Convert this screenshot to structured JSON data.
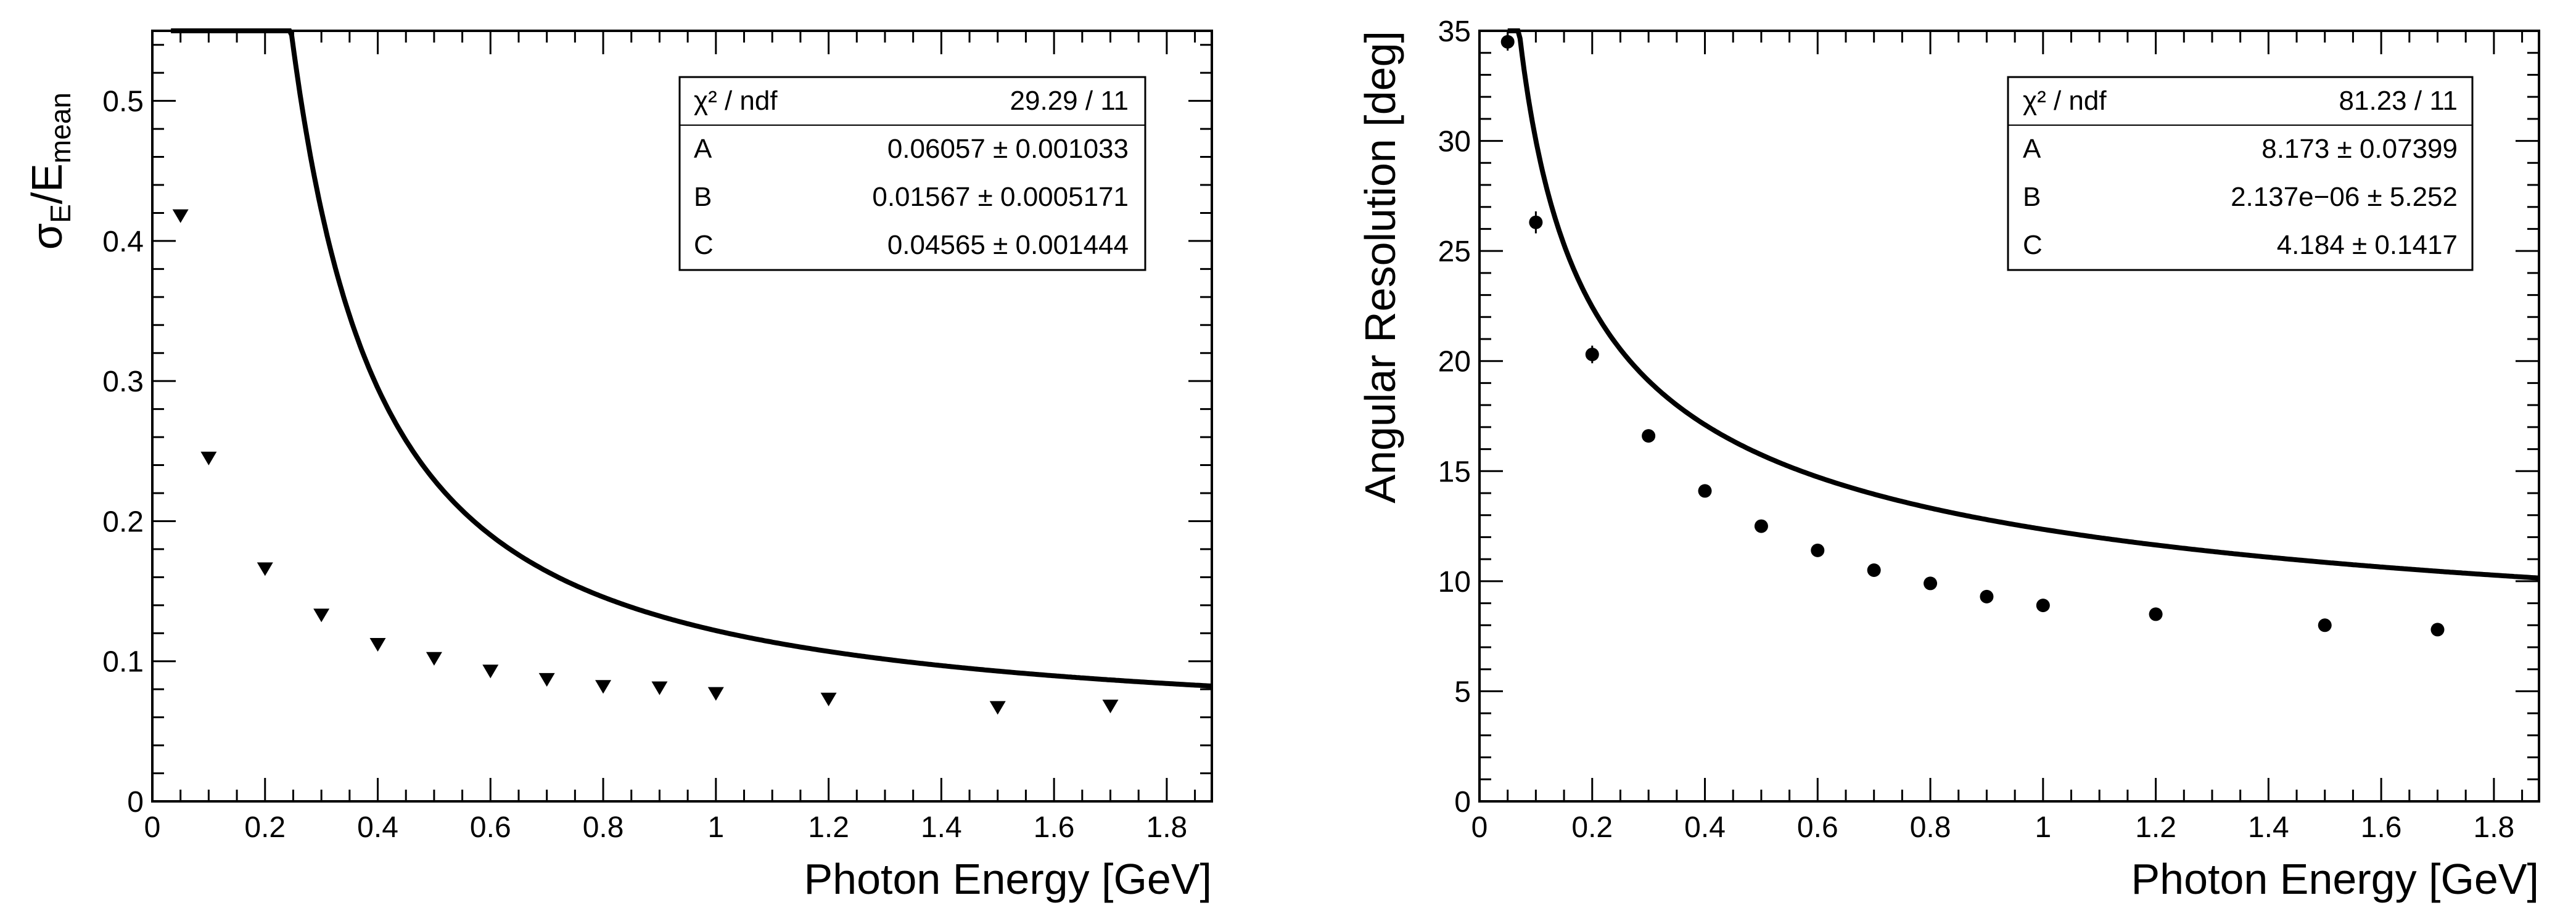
{
  "chart_data": [
    {
      "type": "scatter",
      "marker": "triangle-down",
      "xlabel": "Photon Energy [GeV]",
      "ylabel_main": "σ",
      "ylabel_sub1": "E",
      "ylabel_mid": "/E",
      "ylabel_sub2": "mean",
      "xlim": [
        0,
        1.88
      ],
      "ylim": [
        0,
        0.55
      ],
      "xticks": [
        0,
        0.2,
        0.4,
        0.6,
        0.8,
        1,
        1.2,
        1.4,
        1.6,
        1.8
      ],
      "xtick_labels": [
        "0",
        "0.2",
        "0.4",
        "0.6",
        "0.8",
        "1",
        "1.2",
        "1.4",
        "1.6",
        "1.8"
      ],
      "yticks": [
        0,
        0.1,
        0.2,
        0.3,
        0.4,
        0.5
      ],
      "ytick_labels": [
        "0",
        "0.1",
        "0.2",
        "0.3",
        "0.4",
        "0.5"
      ],
      "x": [
        0.05,
        0.1,
        0.2,
        0.3,
        0.4,
        0.5,
        0.6,
        0.7,
        0.8,
        0.9,
        1.0,
        1.2,
        1.5,
        1.7
      ],
      "y": [
        0.418,
        0.245,
        0.166,
        0.133,
        0.112,
        0.102,
        0.093,
        0.087,
        0.082,
        0.081,
        0.077,
        0.073,
        0.067,
        0.068
      ],
      "fit": {
        "model": "A/E + B/E^2 + C",
        "A": 0.06057,
        "B": 0.01567,
        "C": 0.04565,
        "xmin": 0.033,
        "xmax": 1.88
      },
      "stats": [
        {
          "label": "χ² / ndf",
          "value": "29.29 / 11"
        },
        {
          "label": "A",
          "value": "0.06057 ± 0.001033"
        },
        {
          "label": "B",
          "value": "0.01567 ± 0.0005171"
        },
        {
          "label": "C",
          "value": "0.04565 ± 0.001444"
        }
      ]
    },
    {
      "type": "scatter",
      "marker": "circle",
      "xlabel": "Photon Energy [GeV]",
      "ylabel": "Angular Resolution [deg]",
      "xlim": [
        0,
        1.88
      ],
      "ylim": [
        0,
        35
      ],
      "xticks": [
        0,
        0.2,
        0.4,
        0.6,
        0.8,
        1,
        1.2,
        1.4,
        1.6,
        1.8
      ],
      "xtick_labels": [
        "0",
        "0.2",
        "0.4",
        "0.6",
        "0.8",
        "1",
        "1.2",
        "1.4",
        "1.6",
        "1.8"
      ],
      "yticks": [
        0,
        5,
        10,
        15,
        20,
        25,
        30,
        35
      ],
      "ytick_labels": [
        "0",
        "5",
        "10",
        "15",
        "20",
        "25",
        "30",
        "35"
      ],
      "x": [
        0.05,
        0.1,
        0.2,
        0.3,
        0.4,
        0.5,
        0.6,
        0.7,
        0.8,
        0.9,
        1.0,
        1.2,
        1.5,
        1.7
      ],
      "y": [
        34.5,
        26.3,
        20.3,
        16.6,
        14.1,
        12.5,
        11.4,
        10.5,
        9.9,
        9.3,
        8.9,
        8.5,
        8.0,
        7.8
      ],
      "yerr": [
        0.4,
        0.5,
        0.4,
        0.1,
        0.1,
        0.1,
        0.1,
        0.1,
        0.1,
        0.1,
        0.1,
        0.1,
        0.1,
        0.1
      ],
      "fit": {
        "model": "A/sqrt(E) + B/E + C",
        "A": 8.173,
        "B": 2.137e-06,
        "C": 4.184,
        "xmin": 0.05,
        "xmax": 1.88
      },
      "stats": [
        {
          "label": "χ² / ndf",
          "value": "81.23 / 11"
        },
        {
          "label": "A",
          "value": "8.173 ± 0.07399"
        },
        {
          "label": "B",
          "value": "2.137e−06 ± 5.252"
        },
        {
          "label": "C",
          "value": "4.184 ± 0.1417"
        }
      ]
    }
  ]
}
